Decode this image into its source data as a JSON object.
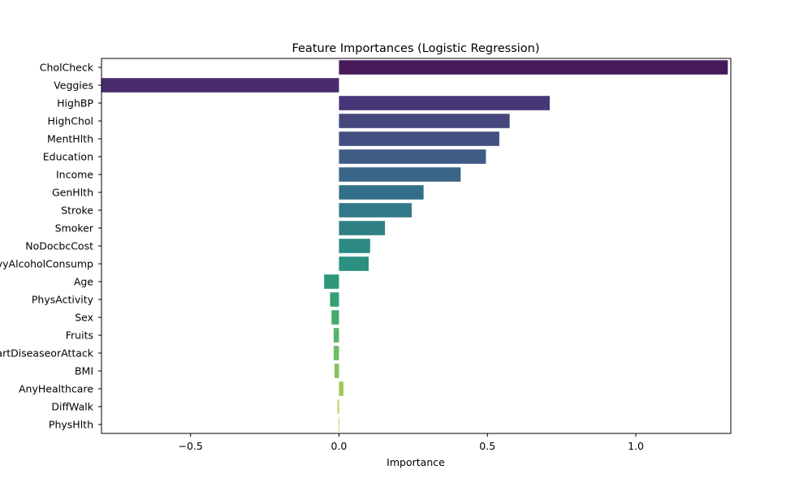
{
  "chart_data": {
    "type": "bar",
    "orientation": "horizontal",
    "title": "Feature Importances (Logistic Regression)",
    "xlabel": "Importance",
    "ylabel": "",
    "xlim": [
      -0.8,
      1.32
    ],
    "xticks": [
      -0.5,
      0.0,
      0.5,
      1.0
    ],
    "xtick_labels": [
      "−0.5",
      "0.0",
      "0.5",
      "1.0"
    ],
    "grid": false,
    "colormap": "viridis",
    "categories": [
      "CholCheck",
      "Veggies",
      "HighBP",
      "HighChol",
      "MentHlth",
      "Education",
      "Income",
      "GenHlth",
      "Stroke",
      "Smoker",
      "NoDocbcCost",
      "HvyAlcoholConsump",
      "Age",
      "PhysActivity",
      "Sex",
      "Fruits",
      "HeartDiseaseorAttack",
      "BMI",
      "AnyHealthcare",
      "DiffWalk",
      "PhysHlth"
    ],
    "values": [
      1.31,
      -0.8,
      0.71,
      0.575,
      0.54,
      0.495,
      0.41,
      0.285,
      0.245,
      0.155,
      0.105,
      0.1,
      -0.05,
      -0.03,
      -0.025,
      -0.018,
      -0.018,
      -0.015,
      0.015,
      -0.005,
      -0.002
    ],
    "colors": [
      "#471a5b",
      "#482c6b",
      "#473677",
      "#45477c",
      "#424f80",
      "#3e5c85",
      "#3a6587",
      "#336f88",
      "#317988",
      "#2f8085",
      "#2c8a83",
      "#2b9080",
      "#2c987a",
      "#35a074",
      "#44aa6d",
      "#58b468",
      "#6cbc62",
      "#86c35c",
      "#9cc956",
      "#b2cf50",
      "#c6d34c"
    ]
  }
}
